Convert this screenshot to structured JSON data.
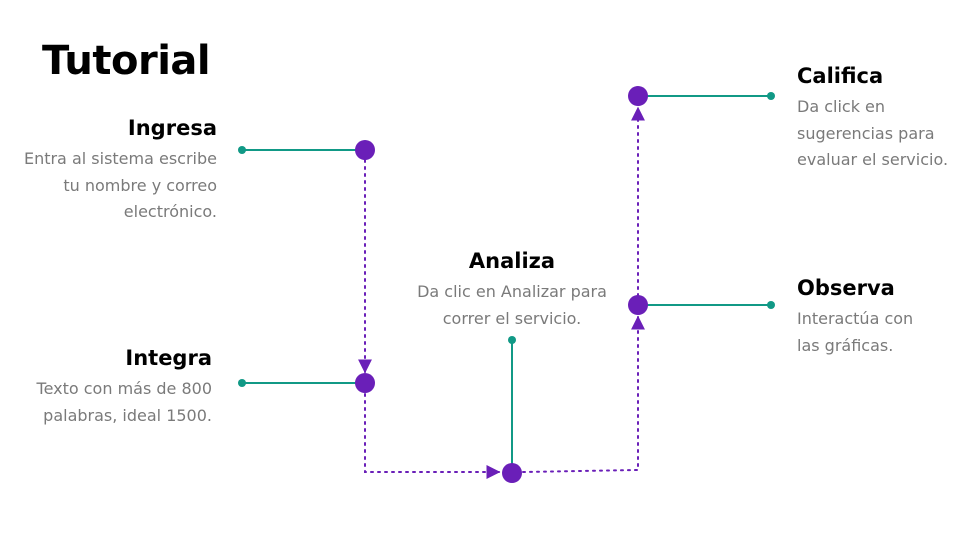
{
  "title": "Tutorial",
  "colors": {
    "teal": "#119986",
    "purple": "#6a1fb8",
    "dot_purple": "#7a35c9",
    "heading": "#000000",
    "body_text": "#7a7a7a"
  },
  "steps": {
    "ingresa": {
      "heading": "Ingresa",
      "line1": "Entra al sistema escribe",
      "line2": "tu nombre y correo",
      "line3": "electrónico."
    },
    "integra": {
      "heading": "Integra",
      "line1": "Texto con más de 800",
      "line2": "palabras, ideal 1500."
    },
    "analiza": {
      "heading": "Analiza",
      "line1": "Da clic en Analizar para",
      "line2": "correr el servicio."
    },
    "observa": {
      "heading": "Observa",
      "line1": "Interactúa con",
      "line2": "las gráficas."
    },
    "califica": {
      "heading": "Califica",
      "line1": "Da click en",
      "line2": "sugerencias para",
      "line3": "evaluar el servicio."
    }
  }
}
